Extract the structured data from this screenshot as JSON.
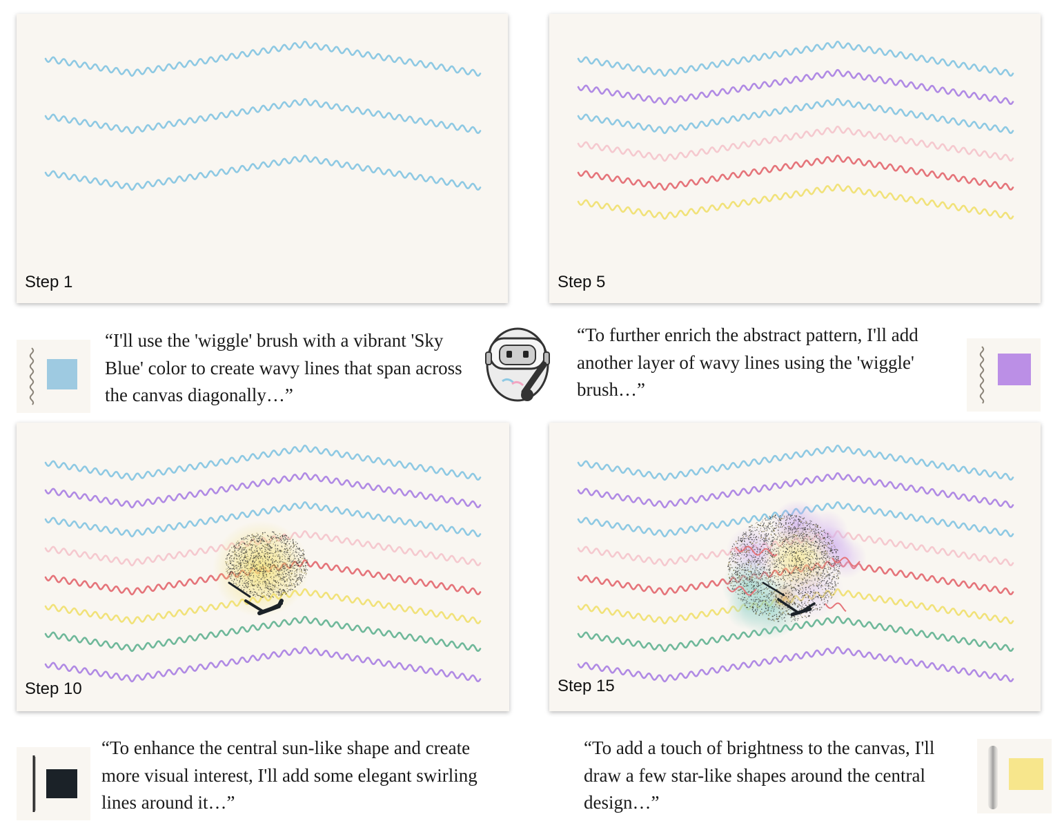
{
  "panels": [
    {
      "label": "Step 1"
    },
    {
      "label": "Step 5"
    },
    {
      "label": "Step 10"
    },
    {
      "label": "Step 15"
    }
  ],
  "captions": [
    {
      "text": "“I'll use the 'wiggle' brush with a vibrant 'Sky Blue' color to create wavy lines that span across the canvas diagonally…”",
      "brush_icon": "wiggle-brush-icon",
      "color": "#9ecae1"
    },
    {
      "text": "“To further enrich the abstract pattern, I'll add another layer of wavy lines using the 'wiggle' brush…”",
      "brush_icon": "wiggle-brush-icon",
      "color": "#bb8fe6"
    },
    {
      "text": "“To enhance the central sun-like shape and create more visual interest, I'll add some elegant swirling lines around it…”",
      "brush_icon": "thin-line-brush-icon",
      "color": "#1b2228"
    },
    {
      "text": "“To add a touch of brightness to the canvas, I'll draw a few star-like shapes around the central design…”",
      "brush_icon": "soft-glow-brush-icon",
      "color": "#f7e68c"
    }
  ],
  "colors": {
    "sky_blue": "#8ec9e3",
    "purple": "#b08ae4",
    "pink": "#f5c9cf",
    "red": "#e5747a",
    "yellow": "#f1e27a",
    "green": "#6fb89a",
    "canvas": "#f9f6f1"
  },
  "robot": {
    "icon": "robot-painter-icon"
  }
}
